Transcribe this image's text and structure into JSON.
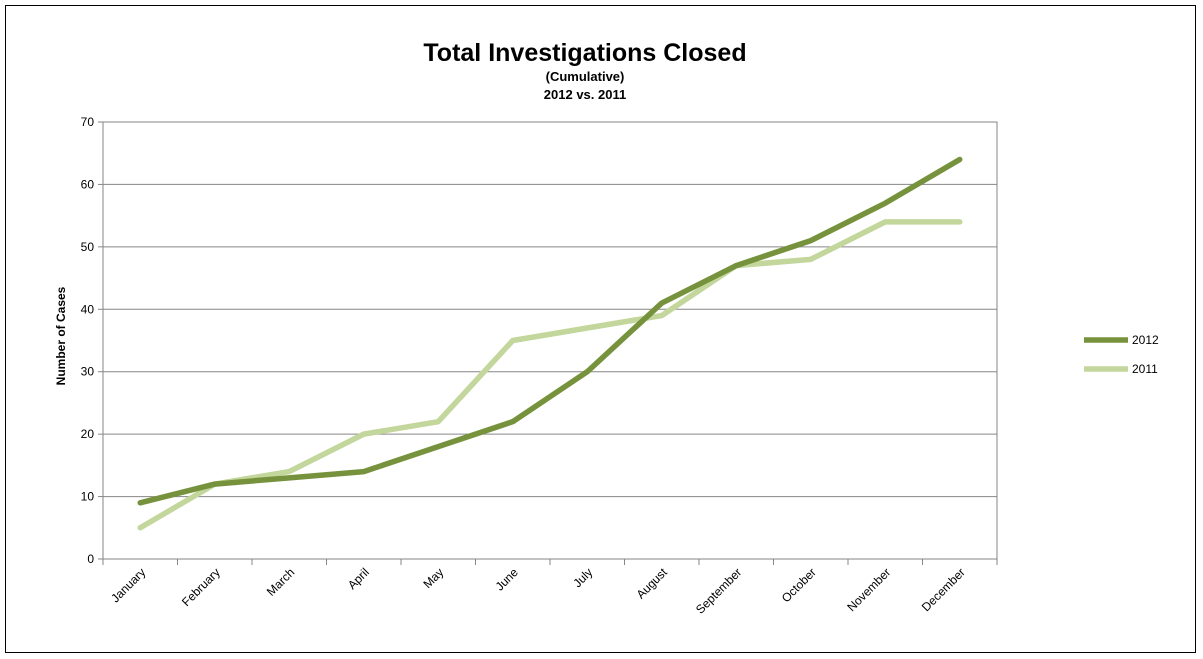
{
  "chart_data": {
    "type": "line",
    "title": "Total Investigations Closed",
    "subtitle": "(Cumulative)",
    "subtitle2": "2012 vs. 2011",
    "xlabel": "",
    "ylabel": "Number of Cases",
    "ylim": [
      0,
      70
    ],
    "yticks": [
      0,
      10,
      20,
      30,
      40,
      50,
      60,
      70
    ],
    "grid": true,
    "legend_position": "right",
    "categories": [
      "January",
      "February",
      "March",
      "April",
      "May",
      "June",
      "July",
      "August",
      "September",
      "October",
      "November",
      "December"
    ],
    "series": [
      {
        "name": "2012",
        "color": "#76923c",
        "values": [
          9,
          12,
          13,
          14,
          18,
          22,
          30,
          41,
          47,
          51,
          57,
          64
        ]
      },
      {
        "name": "2011",
        "color": "#c3d69b",
        "values": [
          5,
          12,
          14,
          20,
          22,
          35,
          37,
          39,
          47,
          48,
          54,
          54
        ]
      }
    ]
  }
}
